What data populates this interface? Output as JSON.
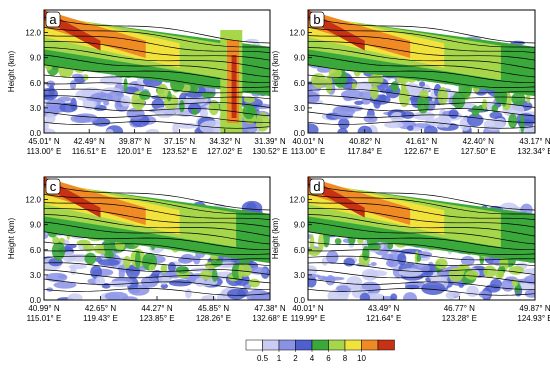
{
  "chart_data": [
    {
      "type": "contour",
      "panel_label": "a",
      "ylabel": "Height (km)",
      "ylim": [
        0,
        14.7
      ],
      "yticks": [
        {
          "value": 0,
          "label": "0.0"
        },
        {
          "value": 3,
          "label": "3.0"
        },
        {
          "value": 6,
          "label": "6.0"
        },
        {
          "value": 9,
          "label": "9.0"
        },
        {
          "value": 12,
          "label": "12.0"
        }
      ],
      "x_labels": [
        [
          "45.01° N",
          "113.00° E"
        ],
        [
          "42.49° N",
          "116.51° E"
        ],
        [
          "39.87° N",
          "120.01° E"
        ],
        [
          "37.15° N",
          "123.52° E"
        ],
        [
          "34.32° N",
          "127.02° E"
        ],
        [
          "31.39° N",
          "130.52° E"
        ]
      ]
    },
    {
      "type": "contour",
      "panel_label": "b",
      "ylabel": "Height (km)",
      "ylim": [
        0,
        14.7
      ],
      "yticks": [
        {
          "value": 0,
          "label": "0.0"
        },
        {
          "value": 3,
          "label": "3.0"
        },
        {
          "value": 6,
          "label": "6.0"
        },
        {
          "value": 9,
          "label": "9.0"
        },
        {
          "value": 12,
          "label": "12.0"
        }
      ],
      "x_labels": [
        [
          "40.01° N",
          "113.00° E"
        ],
        [
          "40.82° N",
          "117.84° E"
        ],
        [
          "41.61° N",
          "122.67° E"
        ],
        [
          "42.40° N",
          "127.50° E"
        ],
        [
          "43.17° N",
          "132.34° E"
        ]
      ]
    },
    {
      "type": "contour",
      "panel_label": "c",
      "ylabel": "Height (km)",
      "ylim": [
        0,
        14.7
      ],
      "yticks": [
        {
          "value": 0,
          "label": "0.0"
        },
        {
          "value": 3,
          "label": "3.0"
        },
        {
          "value": 6,
          "label": "6.0"
        },
        {
          "value": 9,
          "label": "9.0"
        },
        {
          "value": 12,
          "label": "12.0"
        }
      ],
      "x_labels": [
        [
          "40.99° N",
          "115.01° E"
        ],
        [
          "42.65° N",
          "119.43° E"
        ],
        [
          "44.27° N",
          "123.85° E"
        ],
        [
          "45.85° N",
          "128.26° E"
        ],
        [
          "47.38° N",
          "132.68° E"
        ]
      ]
    },
    {
      "type": "contour",
      "panel_label": "d",
      "ylabel": "Height (km)",
      "ylim": [
        0,
        14.7
      ],
      "yticks": [
        {
          "value": 0,
          "label": "0.0"
        },
        {
          "value": 3,
          "label": "3.0"
        },
        {
          "value": 6,
          "label": "6.0"
        },
        {
          "value": 9,
          "label": "9.0"
        },
        {
          "value": 12,
          "label": "12.0"
        }
      ],
      "x_labels": [
        [
          "40.01° N",
          "119.99° E"
        ],
        [
          "43.49° N",
          "121.64° E"
        ],
        [
          "46.77° N",
          "123.28° E"
        ],
        [
          "49.87° N",
          "124.93° E"
        ]
      ]
    }
  ],
  "colorbar": {
    "levels": [
      0.5,
      1,
      2,
      4,
      6,
      8,
      10
    ],
    "colors": [
      "#ffffff",
      "#c9cdf2",
      "#8a92e6",
      "#4f5fd0",
      "#3aa83a",
      "#a6d64a",
      "#f2e23c",
      "#f08a24",
      "#c83214"
    ]
  }
}
